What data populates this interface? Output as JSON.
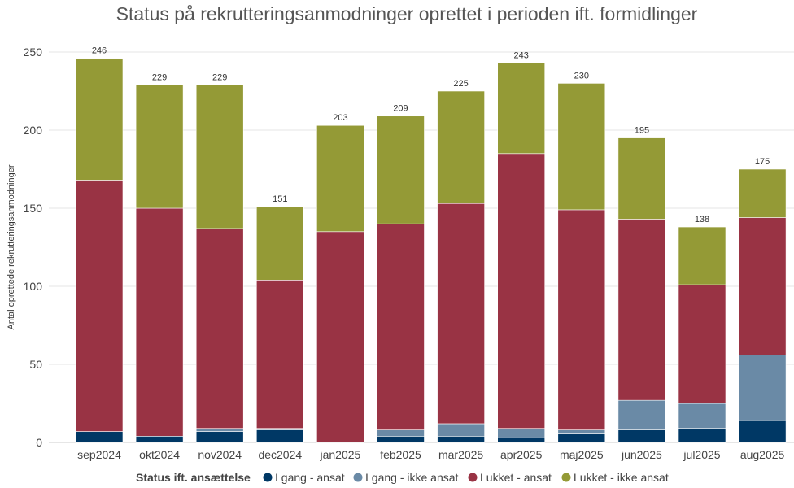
{
  "chart_data": {
    "type": "bar",
    "stacked": true,
    "title": "Status på rekrutteringsanmodninger oprettet i perioden ift. formidlinger",
    "xlabel": "",
    "ylabel": "Antal oprettede rekrutteringsanmodninger",
    "ylim": [
      0,
      260
    ],
    "yticks": [
      0,
      50,
      100,
      150,
      200,
      250
    ],
    "grid": true,
    "legend_title": "Status ift. ansættelse",
    "legend_position": "bottom",
    "categories": [
      "sep2024",
      "okt2024",
      "nov2024",
      "dec2024",
      "jan2025",
      "feb2025",
      "mar2025",
      "apr2025",
      "maj2025",
      "jun2025",
      "jul2025",
      "aug2025"
    ],
    "totals": [
      246,
      229,
      229,
      151,
      203,
      209,
      225,
      243,
      230,
      195,
      138,
      175
    ],
    "series": [
      {
        "name": "I gang - ansat",
        "color": "#003865",
        "values": [
          7,
          4,
          7,
          8,
          0,
          4,
          4,
          3,
          6,
          8,
          9,
          14
        ]
      },
      {
        "name": "I gang - ikke ansat",
        "color": "#6a8aa6",
        "values": [
          0,
          0,
          2,
          1,
          0,
          4,
          8,
          6,
          2,
          19,
          16,
          42
        ]
      },
      {
        "name": "Lukket - ansat",
        "color": "#993344",
        "values": [
          161,
          146,
          128,
          95,
          135,
          132,
          141,
          176,
          141,
          116,
          76,
          88
        ]
      },
      {
        "name": "Lukket - ikke ansat",
        "color": "#949a36",
        "values": [
          78,
          79,
          92,
          47,
          68,
          69,
          72,
          58,
          81,
          52,
          37,
          31
        ]
      }
    ]
  }
}
